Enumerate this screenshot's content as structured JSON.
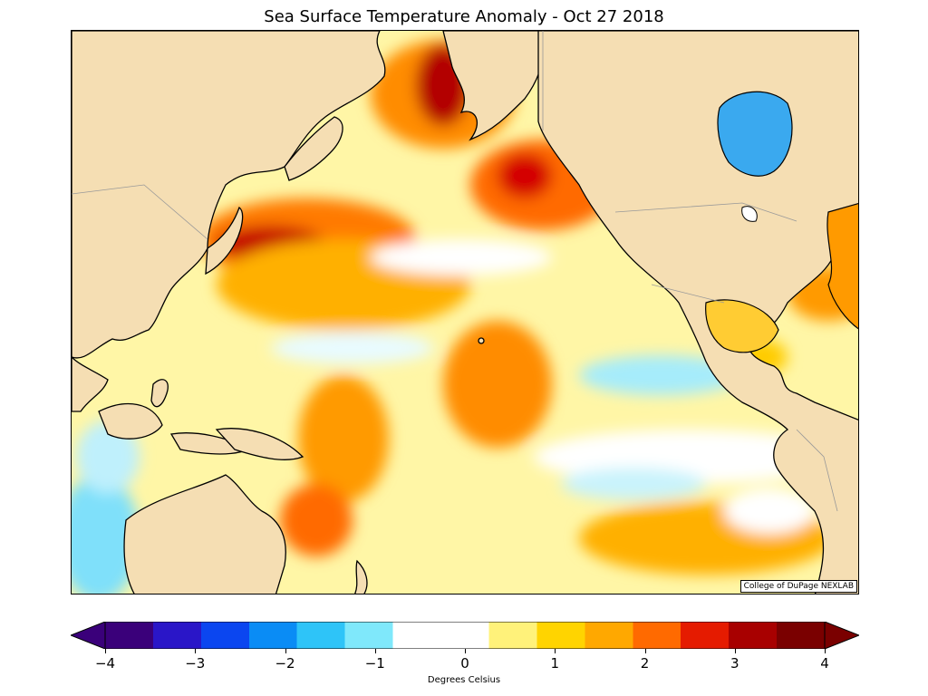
{
  "title": "Sea Surface Temperature Anomaly - Oct 27 2018",
  "credit": "College of DuPage NEXLAB",
  "colorbar": {
    "caption": "Degrees Celsius",
    "min": -4,
    "max": 4,
    "extend": "both",
    "ticks": [
      {
        "value": -4,
        "label": "−4"
      },
      {
        "value": -3,
        "label": "−3"
      },
      {
        "value": -2,
        "label": "−2"
      },
      {
        "value": -1,
        "label": "−1"
      },
      {
        "value": 0,
        "label": "0"
      },
      {
        "value": 1,
        "label": "1"
      },
      {
        "value": 2,
        "label": "2"
      },
      {
        "value": 3,
        "label": "3"
      },
      {
        "value": 4,
        "label": "4"
      }
    ],
    "colors": [
      "#3a007a",
      "#2a16c8",
      "#0b46f0",
      "#0a8cf5",
      "#2ec4f8",
      "#7fe8fb",
      "#ffffff",
      "#ffffff",
      "#fff27a",
      "#ffd400",
      "#ffa800",
      "#ff6a00",
      "#e51b00",
      "#a80000",
      "#7a0000"
    ]
  },
  "colors": {
    "land": "#f5deb3",
    "coast": "#000000",
    "borders": "#999999",
    "ocean_base": "#fffbd0"
  },
  "map": {
    "region": "North Pacific Ocean",
    "variable": "sea surface temperature anomaly"
  }
}
